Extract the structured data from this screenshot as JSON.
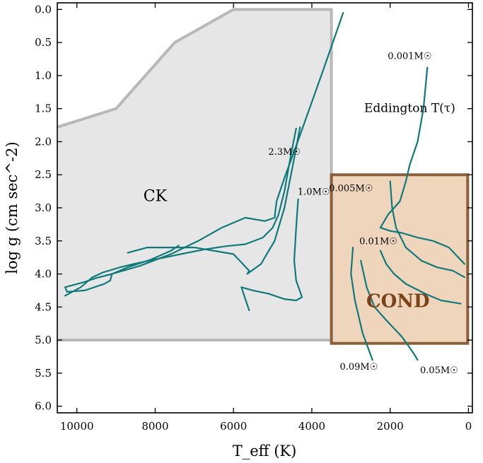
{
  "chart_data": {
    "type": "line",
    "title": "",
    "xlabel": "T_eff (K)",
    "ylabel": "log g (cm sec^-2)",
    "xlim": [
      10500,
      -100
    ],
    "ylim": [
      6.1,
      -0.1
    ],
    "x_inverted": true,
    "y_inverted": true,
    "grid": false,
    "x_ticks": [
      10000,
      8000,
      6000,
      4000,
      2000,
      0
    ],
    "x_tick_labels": [
      "10000",
      "8000",
      "6000",
      "4000",
      "2000",
      "0"
    ],
    "y_ticks": [
      0.0,
      0.5,
      1.0,
      1.5,
      2.0,
      2.5,
      3.0,
      3.5,
      4.0,
      4.5,
      5.0,
      5.5,
      6.0
    ],
    "y_tick_labels": [
      "0.0",
      "0.5",
      "1.0",
      "1.5",
      "2.0",
      "2.5",
      "3.0",
      "3.5",
      "4.0",
      "4.5",
      "5.0",
      "5.5",
      "6.0"
    ],
    "regions": [
      {
        "name": "CK",
        "label": "CK",
        "fill": "#e6e6e6",
        "edge": "#b8b8b8",
        "polygon": [
          [
            10500,
            1.78
          ],
          [
            9000,
            1.5
          ],
          [
            7500,
            0.5
          ],
          [
            6000,
            0.0
          ],
          [
            3500,
            0.0
          ],
          [
            3500,
            5.0
          ],
          [
            10500,
            5.0
          ]
        ],
        "open_side": "left",
        "label_at": [
          8000,
          2.9
        ]
      },
      {
        "name": "COND",
        "label": "COND",
        "fill": "#efd5bc",
        "edge": "#8b6038",
        "polygon": [
          [
            3500,
            2.5
          ],
          [
            20,
            2.5
          ],
          [
            20,
            5.05
          ],
          [
            3500,
            5.05
          ]
        ],
        "label_at": [
          1800,
          4.5
        ]
      }
    ],
    "annotations": [
      {
        "text": "Eddington T(τ)",
        "at": [
          1500,
          1.55
        ]
      }
    ],
    "line_color": "#10797a",
    "series": [
      {
        "name": "2.3 M☉",
        "label": "2.3M☉",
        "label_at": [
          4700,
          2.2
        ],
        "x": [
          3200,
          3700,
          4300,
          4700,
          4900,
          4950,
          5200,
          5700,
          6300,
          6900,
          7600,
          8400,
          9100,
          9500,
          9800,
          10300,
          10250,
          9800,
          9300,
          9150,
          9100,
          8700,
          8100,
          7600,
          7400
        ],
        "y": [
          0.05,
          0.9,
          1.9,
          2.55,
          2.9,
          3.15,
          3.2,
          3.15,
          3.3,
          3.5,
          3.7,
          3.88,
          4.0,
          4.06,
          4.12,
          4.2,
          4.27,
          4.25,
          4.15,
          4.1,
          4.0,
          3.9,
          3.78,
          3.65,
          3.57
        ]
      },
      {
        "name": "2.3 M☉ secondary track",
        "label": "",
        "x": [
          4400,
          4550,
          4700,
          4850,
          5000,
          5250,
          5700,
          6200,
          6750,
          7350,
          8000,
          8550,
          8900,
          9350,
          9600,
          9900,
          10300
        ],
        "y": [
          1.8,
          2.25,
          2.75,
          3.1,
          3.3,
          3.45,
          3.55,
          3.58,
          3.63,
          3.7,
          3.78,
          3.85,
          3.9,
          3.98,
          4.05,
          4.2,
          4.33
        ]
      },
      {
        "name": "2.3 M☉ tertiary track",
        "label": "",
        "x": [
          4300,
          4500,
          4700,
          4950,
          5300,
          5650,
          5600,
          6000,
          7000,
          8200,
          8700
        ],
        "y": [
          1.78,
          2.4,
          3.0,
          3.5,
          3.85,
          4.0,
          3.95,
          3.7,
          3.6,
          3.6,
          3.68
        ]
      },
      {
        "name": "1.0 M☉",
        "label": "1.0M☉",
        "label_at": [
          3950,
          2.8
        ],
        "x": [
          4350,
          4400,
          4450,
          4400,
          4250,
          4400,
          4700,
          5100,
          5500,
          5800,
          5600
        ],
        "y": [
          2.87,
          3.3,
          3.8,
          4.1,
          4.35,
          4.4,
          4.38,
          4.3,
          4.25,
          4.2,
          4.55
        ]
      },
      {
        "name": "0.001 M☉",
        "label": "0.001M☉",
        "label_at": [
          1500,
          0.75
        ],
        "x": [
          1050,
          1150,
          1300,
          1500,
          1600,
          1750,
          2050,
          2250,
          2000,
          1700,
          1300,
          900,
          500,
          100
        ],
        "y": [
          0.88,
          1.5,
          2.0,
          2.35,
          2.6,
          2.9,
          3.1,
          3.3,
          3.35,
          3.38,
          3.45,
          3.5,
          3.6,
          3.85
        ]
      },
      {
        "name": "0.005 M☉",
        "label": "0.005M☉",
        "label_at": [
          3000,
          2.75
        ],
        "x": [
          2000,
          1950,
          1850,
          1600,
          1200,
          800,
          400,
          100
        ],
        "y": [
          2.6,
          3.0,
          3.3,
          3.6,
          3.8,
          3.9,
          3.95,
          4.05
        ]
      },
      {
        "name": "0.01 M☉",
        "label": "0.01M☉",
        "label_at": [
          2300,
          3.55
        ],
        "x": [
          2250,
          2100,
          1900,
          1600,
          1100,
          700,
          200
        ],
        "y": [
          3.65,
          3.85,
          4.0,
          4.15,
          4.3,
          4.4,
          4.45
        ]
      },
      {
        "name": "0.05 M☉",
        "label": "0.05M☉",
        "label_at": [
          750,
          5.5
        ],
        "x": [
          2750,
          2600,
          2400,
          2100,
          1700,
          1400,
          1300
        ],
        "y": [
          3.8,
          4.2,
          4.5,
          4.7,
          4.95,
          5.2,
          5.3
        ]
      },
      {
        "name": "0.09 M☉",
        "label": "0.09M☉",
        "label_at": [
          2800,
          5.45
        ],
        "x": [
          2950,
          3000,
          2900,
          2700,
          2450
        ],
        "y": [
          3.6,
          4.0,
          4.4,
          4.9,
          5.3
        ]
      }
    ]
  }
}
